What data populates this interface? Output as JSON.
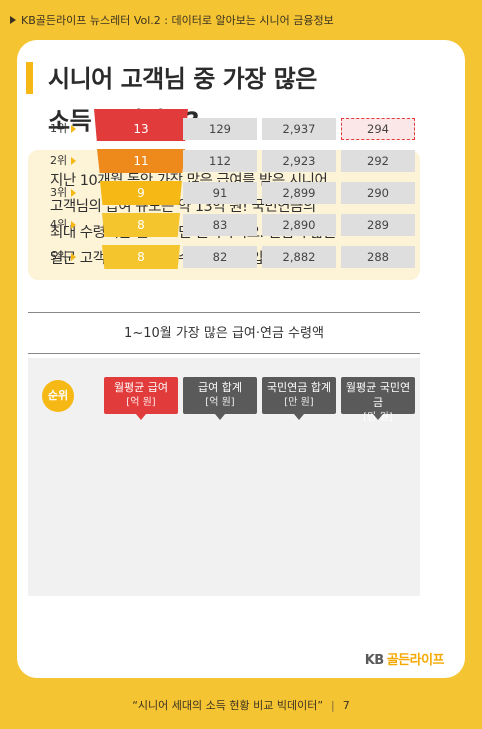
{
  "header": {
    "breadcrumb": "KB골든라이프 뉴스레터 Vol.2 : 데이터로 알아보는 시니어 금융정보"
  },
  "title": {
    "line1": "시니어 고객님 중 가장 많은",
    "line2": "소득 수령액은?"
  },
  "intro": {
    "line1": "지난 10개월 동안 가장 많은 급여를 받은 시니어",
    "line2": "고객님의 급여 규모는 약 13억 원! 국민연금의",
    "line3": "최대 수령액은 월 294만 원이라지요. 열심히 삶을",
    "line4": "일군 고객님과 함께할 수 있어 영광입니다."
  },
  "chart_data": {
    "type": "table",
    "title": "1~10월 가장 많은 급여·연금 수령액",
    "rank_header": "순위",
    "columns": [
      {
        "name": "월평균 급여",
        "unit": "[억 원]"
      },
      {
        "name": "급여 합계",
        "unit": "[억 원]"
      },
      {
        "name": "국민연금 합계",
        "unit": "[만 원]"
      },
      {
        "name": "월평균 국민연금",
        "unit": "[만 원]"
      }
    ],
    "rows": [
      {
        "rank": "1위",
        "values": [
          "13",
          "129",
          "2,937",
          "294"
        ]
      },
      {
        "rank": "2위",
        "values": [
          "11",
          "112",
          "2,923",
          "292"
        ]
      },
      {
        "rank": "3위",
        "values": [
          "9",
          "91",
          "2,899",
          "290"
        ]
      },
      {
        "rank": "4위",
        "values": [
          "8",
          "83",
          "2,890",
          "289"
        ]
      },
      {
        "rank": "5위",
        "values": [
          "8",
          "82",
          "2,882",
          "288"
        ]
      }
    ],
    "funnel_colors": [
      "#e23b3b",
      "#ee8a1c",
      "#f5b814",
      "#f5c52d",
      "#f5c52d"
    ],
    "highlight": {
      "row": 0,
      "column": 3
    }
  },
  "logo": {
    "kb": "KB",
    "brand": "골든라이프"
  },
  "footer": {
    "text": "“시니어 세대의 소득 현황 비교 빅데이터”",
    "separator": "|",
    "page": "7"
  },
  "colors": {
    "background": "#f5c432",
    "accent": "#f5b814",
    "red": "#e23b3b",
    "header_gray": "#5a5a5a"
  }
}
